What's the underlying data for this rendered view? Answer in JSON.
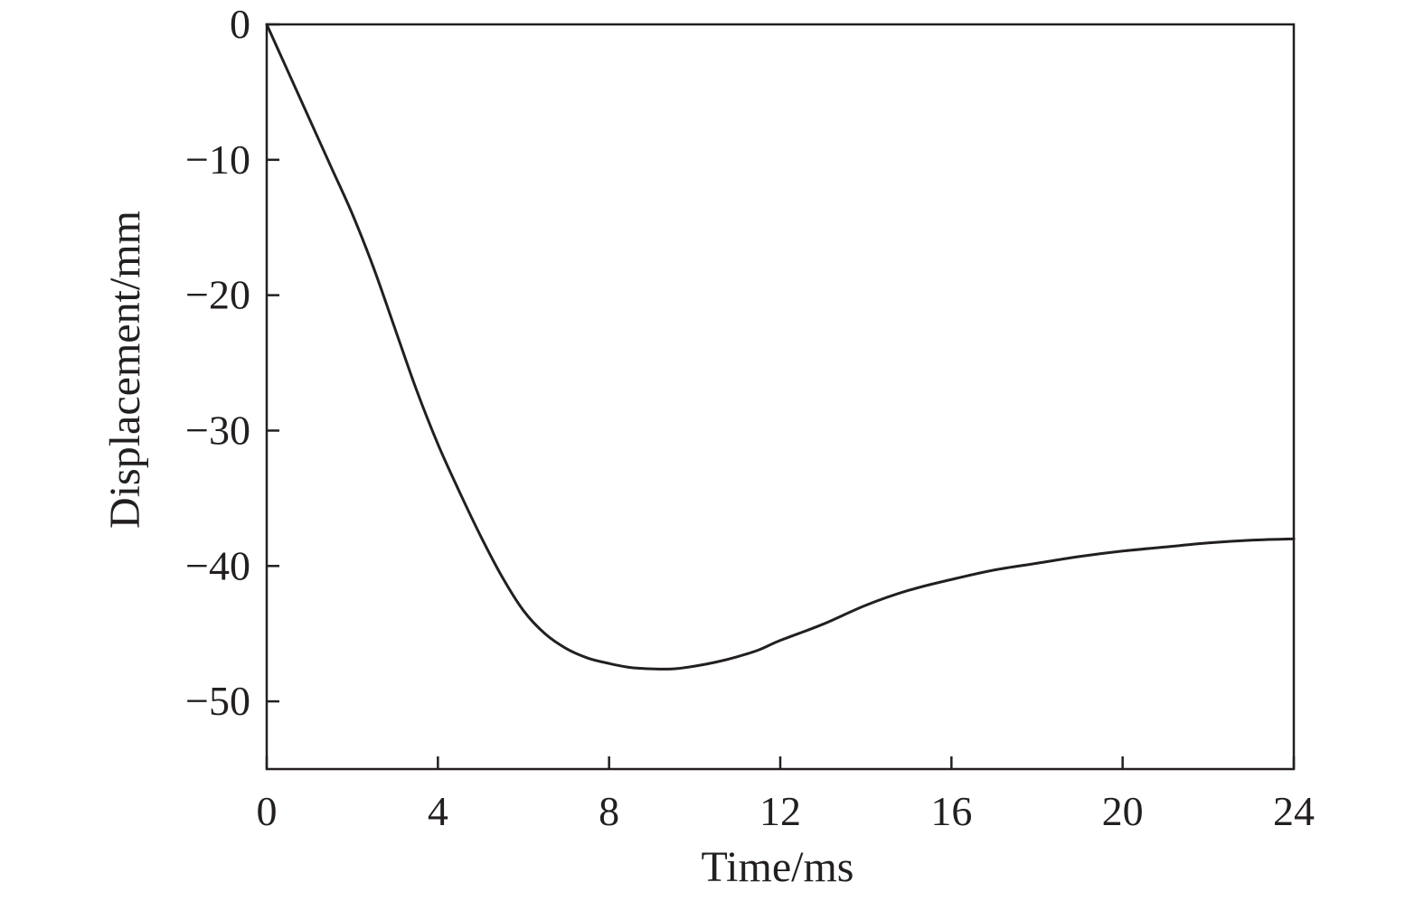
{
  "chart_data": {
    "type": "line",
    "title": "",
    "xlabel": "Time/ms",
    "ylabel": "Displacement/mm",
    "xlim": [
      0,
      24
    ],
    "ylim": [
      -55,
      0
    ],
    "xticks": [
      0,
      4,
      8,
      12,
      16,
      20,
      24
    ],
    "yticks": [
      0,
      -10,
      -20,
      -30,
      -40,
      -50
    ],
    "xtick_labels": [
      "0",
      "4",
      "8",
      "12",
      "16",
      "20",
      "24"
    ],
    "ytick_labels": [
      "0",
      "−10",
      "−20",
      "−30",
      "−40",
      "−50"
    ],
    "grid": false,
    "legend": "none",
    "line_color": "#231f20",
    "series": [
      {
        "x": [
          0,
          0.5,
          1,
          1.5,
          2,
          2.5,
          3,
          3.5,
          4,
          4.5,
          5,
          5.5,
          6,
          6.5,
          7,
          7.5,
          8,
          8.5,
          9,
          9.5,
          10,
          10.5,
          11,
          11.5,
          12,
          13,
          14,
          15,
          16,
          17,
          18,
          19,
          20,
          21,
          22,
          23,
          24
        ],
        "y": [
          0,
          -3.5,
          -7,
          -10.5,
          -14,
          -18,
          -22.5,
          -27,
          -31,
          -34.5,
          -37.8,
          -40.8,
          -43.3,
          -45.0,
          -46.1,
          -46.8,
          -47.2,
          -47.5,
          -47.6,
          -47.6,
          -47.4,
          -47.1,
          -46.7,
          -46.2,
          -45.5,
          -44.3,
          -42.9,
          -41.8,
          -41.0,
          -40.3,
          -39.8,
          -39.3,
          -38.9,
          -38.6,
          -38.3,
          -38.1,
          -38.0
        ]
      }
    ]
  }
}
